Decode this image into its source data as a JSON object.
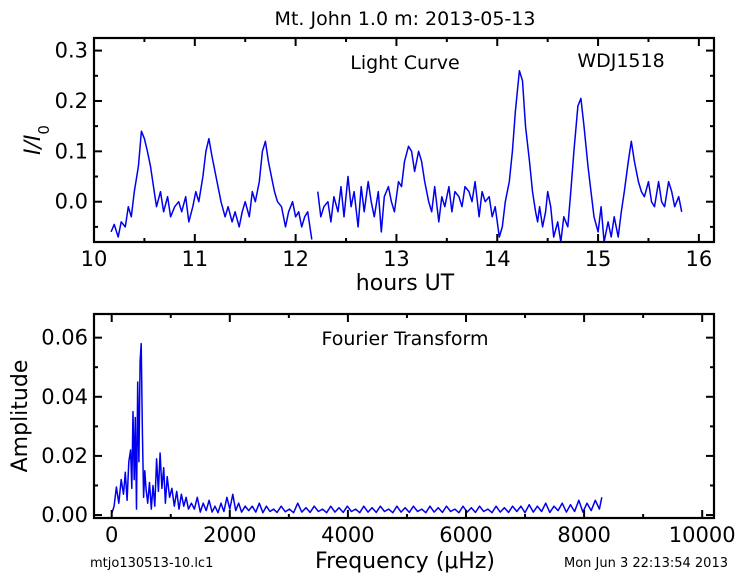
{
  "figure": {
    "title": "Mt. John 1.0 m:  2013-05-13",
    "footer_left": "mtjo130513-10.lc1",
    "footer_right": "Mon Jun  3 22:13:54 2013"
  },
  "chart_data": [
    {
      "type": "line",
      "title": "Light Curve",
      "annotation": "WDJ1518",
      "xlabel": "hours UT",
      "ylabel": "I/I0",
      "xlim": [
        10,
        16.15
      ],
      "ylim": [
        -0.08,
        0.325
      ],
      "xticks": [
        10,
        11,
        12,
        13,
        14,
        15,
        16
      ],
      "yticks": [
        0.0,
        0.1,
        0.2,
        0.3
      ],
      "ytick_labels": [
        "0.0",
        "0.1",
        "0.2",
        "0.3"
      ],
      "series": [
        {
          "color": "#0000ee",
          "segments": [
            {
              "x": [
                10.17,
                10.2,
                10.24,
                10.27,
                10.31,
                10.34,
                10.37,
                10.4,
                10.44,
                10.47,
                10.5,
                10.53,
                10.56,
                10.59,
                10.62,
                10.66,
                10.69,
                10.73,
                10.76,
                10.8,
                10.84,
                10.87,
                10.91,
                10.94,
                10.98,
                11.01,
                11.04,
                11.08,
                11.11,
                11.14,
                11.17,
                11.2,
                11.23,
                11.26,
                11.3,
                11.33,
                11.37,
                11.4,
                11.44,
                11.47,
                11.5,
                11.54,
                11.57,
                11.6,
                11.64,
                11.67,
                11.7,
                11.73,
                11.76,
                11.79,
                11.82,
                11.86,
                11.9,
                11.93,
                11.97,
                12.0,
                12.03,
                12.06,
                12.09,
                12.12,
                12.16
              ],
              "y": [
                -0.06,
                -0.045,
                -0.07,
                -0.04,
                -0.05,
                -0.01,
                -0.03,
                0.02,
                0.07,
                0.14,
                0.125,
                0.1,
                0.07,
                0.03,
                -0.01,
                0.02,
                -0.02,
                0.01,
                -0.03,
                -0.01,
                0.0,
                -0.02,
                0.01,
                -0.04,
                -0.01,
                0.02,
                0.0,
                0.05,
                0.1,
                0.125,
                0.09,
                0.06,
                0.03,
                0.0,
                -0.03,
                -0.01,
                -0.04,
                -0.02,
                -0.05,
                -0.02,
                0.0,
                -0.03,
                0.02,
                0.0,
                0.04,
                0.1,
                0.12,
                0.08,
                0.05,
                0.02,
                0.0,
                -0.01,
                -0.05,
                -0.02,
                0.0,
                -0.03,
                -0.02,
                -0.05,
                -0.03,
                -0.02,
                -0.075
              ]
            },
            {
              "x": [
                12.22,
                12.25,
                12.28,
                12.32,
                12.35,
                12.38,
                12.42,
                12.45,
                12.48,
                12.52,
                12.55,
                12.58,
                12.62,
                12.65,
                12.68,
                12.72,
                12.75,
                12.78,
                12.82,
                12.85,
                12.88,
                12.92,
                12.95,
                12.98,
                13.02,
                13.05,
                13.08,
                13.12,
                13.15,
                13.18,
                13.22,
                13.25,
                13.28,
                13.32,
                13.35,
                13.38,
                13.42,
                13.45,
                13.48,
                13.52,
                13.55,
                13.58,
                13.62,
                13.65,
                13.68,
                13.72,
                13.75,
                13.78,
                13.82,
                13.85,
                13.88,
                13.92,
                13.95,
                13.98,
                14.02,
                14.05,
                14.08,
                14.12,
                14.15,
                14.18,
                14.22,
                14.25,
                14.28,
                14.32,
                14.35,
                14.38,
                14.4,
                14.42,
                14.45,
                14.48,
                14.5,
                14.53,
                14.56,
                14.6,
                14.63,
                14.66,
                14.7,
                14.73,
                14.76,
                14.8,
                14.83,
                14.86,
                14.9,
                14.93,
                14.96,
                15.0,
                15.03,
                15.06,
                15.1,
                15.13,
                15.16,
                15.2,
                15.23,
                15.26,
                15.3,
                15.33,
                15.36,
                15.4,
                15.43,
                15.46,
                15.5,
                15.53,
                15.56,
                15.6,
                15.63,
                15.66,
                15.7,
                15.73,
                15.76,
                15.8,
                15.83
              ],
              "y": [
                0.02,
                -0.03,
                -0.01,
                0.0,
                -0.04,
                0.01,
                -0.02,
                0.03,
                -0.03,
                0.05,
                -0.01,
                0.02,
                -0.05,
                0.03,
                -0.02,
                0.04,
                0.0,
                -0.03,
                0.02,
                -0.06,
                0.01,
                0.03,
                0.0,
                -0.02,
                0.04,
                0.03,
                0.08,
                0.11,
                0.1,
                0.06,
                0.1,
                0.08,
                0.04,
                0.0,
                -0.02,
                0.03,
                -0.04,
                0.01,
                -0.01,
                0.03,
                -0.02,
                0.02,
                0.01,
                -0.01,
                0.03,
                0.02,
                0.0,
                0.04,
                -0.03,
                0.02,
                0.0,
                0.01,
                -0.03,
                -0.01,
                -0.07,
                -0.05,
                0.0,
                0.04,
                0.1,
                0.18,
                0.26,
                0.24,
                0.15,
                0.08,
                0.02,
                -0.02,
                -0.04,
                -0.01,
                -0.05,
                -0.02,
                0.02,
                -0.01,
                -0.07,
                -0.04,
                -0.08,
                -0.03,
                -0.05,
                0.02,
                0.1,
                0.19,
                0.205,
                0.15,
                0.07,
                0.02,
                -0.03,
                -0.06,
                -0.01,
                -0.08,
                -0.04,
                -0.07,
                -0.03,
                -0.07,
                -0.02,
                0.02,
                0.08,
                0.12,
                0.08,
                0.04,
                0.02,
                0.01,
                0.04,
                0.0,
                -0.01,
                0.04,
                0.0,
                -0.01,
                0.04,
                0.02,
                -0.01,
                0.01,
                -0.02
              ]
            }
          ]
        }
      ]
    },
    {
      "type": "line",
      "title": "Fourier Transform",
      "xlabel": "Frequency (μHz)",
      "ylabel": "Amplitude",
      "xlim": [
        -300,
        10200
      ],
      "ylim": [
        -0.001,
        0.068
      ],
      "xticks": [
        0,
        2000,
        4000,
        6000,
        8000,
        10000
      ],
      "yticks": [
        0.0,
        0.02,
        0.04,
        0.06
      ],
      "ytick_labels": [
        "0.00",
        "0.02",
        "0.04",
        "0.06"
      ],
      "series": [
        {
          "color": "#0000ee",
          "x": [
            0,
            40,
            80,
            120,
            160,
            200,
            230,
            260,
            290,
            320,
            340,
            360,
            380,
            400,
            420,
            440,
            460,
            480,
            500,
            520,
            540,
            560,
            580,
            610,
            640,
            670,
            700,
            730,
            760,
            790,
            820,
            850,
            880,
            910,
            940,
            980,
            1020,
            1060,
            1100,
            1140,
            1180,
            1220,
            1260,
            1300,
            1350,
            1400,
            1450,
            1500,
            1550,
            1600,
            1650,
            1700,
            1750,
            1800,
            1850,
            1900,
            1950,
            2000,
            2050,
            2100,
            2150,
            2200,
            2260,
            2320,
            2380,
            2440,
            2500,
            2560,
            2620,
            2680,
            2740,
            2800,
            2870,
            2940,
            3010,
            3080,
            3150,
            3220,
            3290,
            3360,
            3430,
            3500,
            3570,
            3640,
            3710,
            3780,
            3850,
            3920,
            3990,
            4060,
            4130,
            4200,
            4270,
            4340,
            4410,
            4480,
            4550,
            4620,
            4690,
            4760,
            4830,
            4900,
            4970,
            5040,
            5110,
            5180,
            5250,
            5320,
            5390,
            5460,
            5530,
            5600,
            5670,
            5740,
            5810,
            5880,
            5950,
            6020,
            6090,
            6160,
            6230,
            6300,
            6370,
            6440,
            6510,
            6580,
            6650,
            6720,
            6790,
            6860,
            6930,
            7000,
            7070,
            7140,
            7210,
            7280,
            7350,
            7420,
            7490,
            7560,
            7630,
            7700,
            7770,
            7840,
            7910,
            7980,
            8050,
            8120,
            8190,
            8260,
            8300
          ],
          "y": [
            0.0005,
            0.003,
            0.0095,
            0.004,
            0.012,
            0.007,
            0.0145,
            0.005,
            0.018,
            0.022,
            0.009,
            0.035,
            0.012,
            0.033,
            0.002,
            0.045,
            0.018,
            0.052,
            0.058,
            0.028,
            0.006,
            0.015,
            0.009,
            0.004,
            0.011,
            0.002,
            0.01,
            0.003,
            0.019,
            0.008,
            0.021,
            0.009,
            0.016,
            0.004,
            0.013,
            0.006,
            0.009,
            0.003,
            0.008,
            0.002,
            0.007,
            0.003,
            0.006,
            0.002,
            0.004,
            0.002,
            0.006,
            0.001,
            0.004,
            0.0015,
            0.005,
            0.001,
            0.003,
            0.0008,
            0.004,
            0.0012,
            0.006,
            0.002,
            0.007,
            0.0015,
            0.004,
            0.001,
            0.003,
            0.0015,
            0.003,
            0.001,
            0.004,
            0.0008,
            0.003,
            0.0012,
            0.002,
            0.0009,
            0.003,
            0.0011,
            0.002,
            0.0008,
            0.004,
            0.001,
            0.0025,
            0.0009,
            0.003,
            0.0012,
            0.002,
            0.0008,
            0.003,
            0.001,
            0.0025,
            0.0009,
            0.003,
            0.0012,
            0.002,
            0.0008,
            0.003,
            0.001,
            0.0025,
            0.0009,
            0.003,
            0.0012,
            0.002,
            0.0008,
            0.003,
            0.001,
            0.0025,
            0.0009,
            0.003,
            0.0012,
            0.002,
            0.0008,
            0.003,
            0.001,
            0.0025,
            0.0009,
            0.003,
            0.0012,
            0.002,
            0.0008,
            0.003,
            0.001,
            0.0025,
            0.0009,
            0.003,
            0.0012,
            0.002,
            0.0008,
            0.003,
            0.001,
            0.0025,
            0.0009,
            0.003,
            0.0012,
            0.003,
            0.0008,
            0.0035,
            0.001,
            0.003,
            0.0012,
            0.004,
            0.0009,
            0.003,
            0.0015,
            0.004,
            0.001,
            0.0035,
            0.0012,
            0.005,
            0.001,
            0.004,
            0.0015,
            0.005,
            0.002,
            0.006
          ]
        }
      ]
    }
  ]
}
